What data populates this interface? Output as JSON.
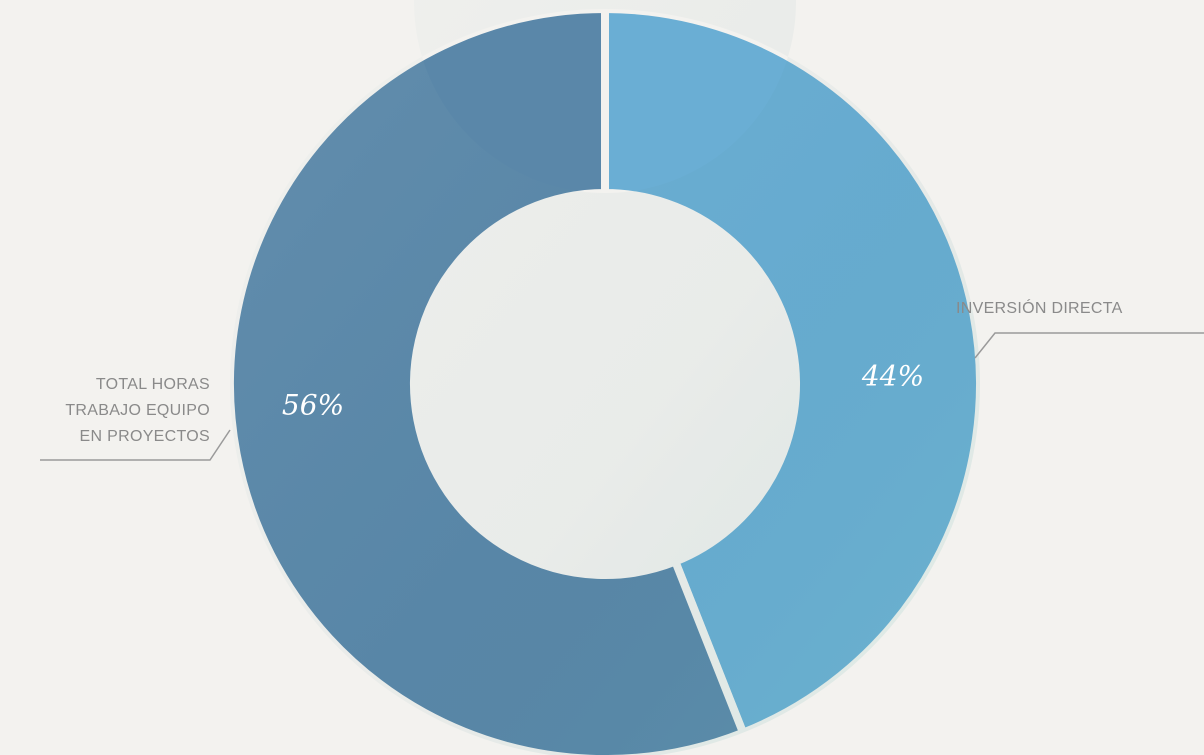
{
  "chart_data": {
    "type": "donut",
    "categories": [
      "INVERSIÓN DIRECTA",
      "TOTAL HORAS\nTRABAJO EQUIPO\nEN PROYECTOS"
    ],
    "values": [
      44,
      56
    ],
    "value_labels": [
      "44%",
      "56%"
    ],
    "colors": [
      "#6aaed4",
      "#5a87a9"
    ]
  }
}
